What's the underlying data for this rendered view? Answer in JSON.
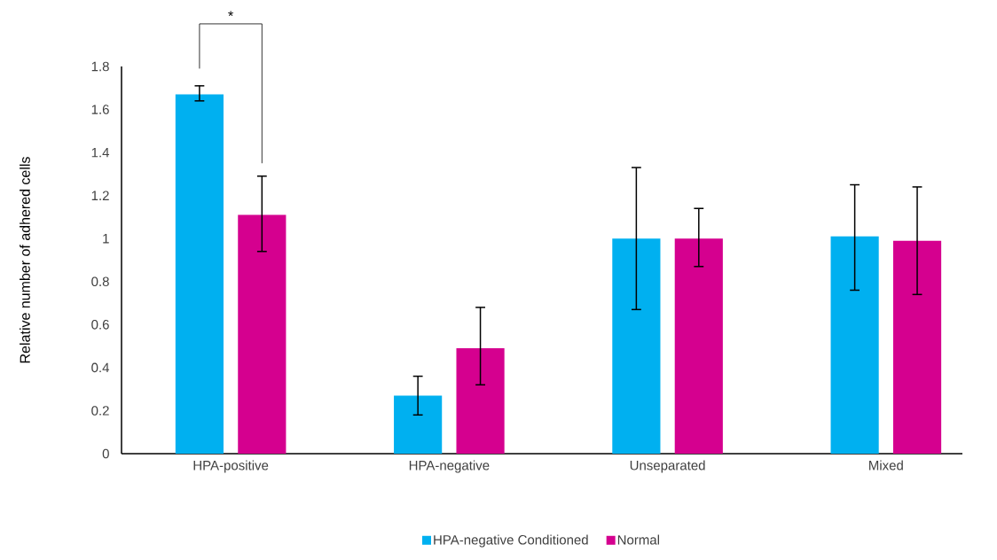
{
  "chart_data": {
    "type": "bar",
    "ylabel": "Relative number of adhered cells",
    "categories": [
      "HPA-positive",
      "HPA-negative",
      "Unseparated",
      "Mixed"
    ],
    "series": [
      {
        "name": "HPA-negative Conditioned",
        "color": "#00b0f0",
        "values": [
          1.67,
          0.27,
          1.0,
          1.01
        ],
        "errors": [
          [
            1.64,
            1.71
          ],
          [
            0.18,
            0.36
          ],
          [
            0.67,
            1.33
          ],
          [
            0.76,
            1.25
          ]
        ]
      },
      {
        "name": "Normal",
        "color": "#d5008f",
        "values": [
          1.11,
          0.49,
          1.0,
          0.99
        ],
        "errors": [
          [
            0.94,
            1.29
          ],
          [
            0.32,
            0.68
          ],
          [
            0.87,
            1.14
          ],
          [
            0.74,
            1.24
          ]
        ]
      }
    ],
    "ylim": [
      0,
      1.8
    ],
    "yticks": [
      0,
      0.2,
      0.4,
      0.6,
      0.8,
      1,
      1.2,
      1.4,
      1.6,
      1.8
    ],
    "annotations": [
      "*"
    ],
    "legend": "bottom",
    "grid": false
  }
}
